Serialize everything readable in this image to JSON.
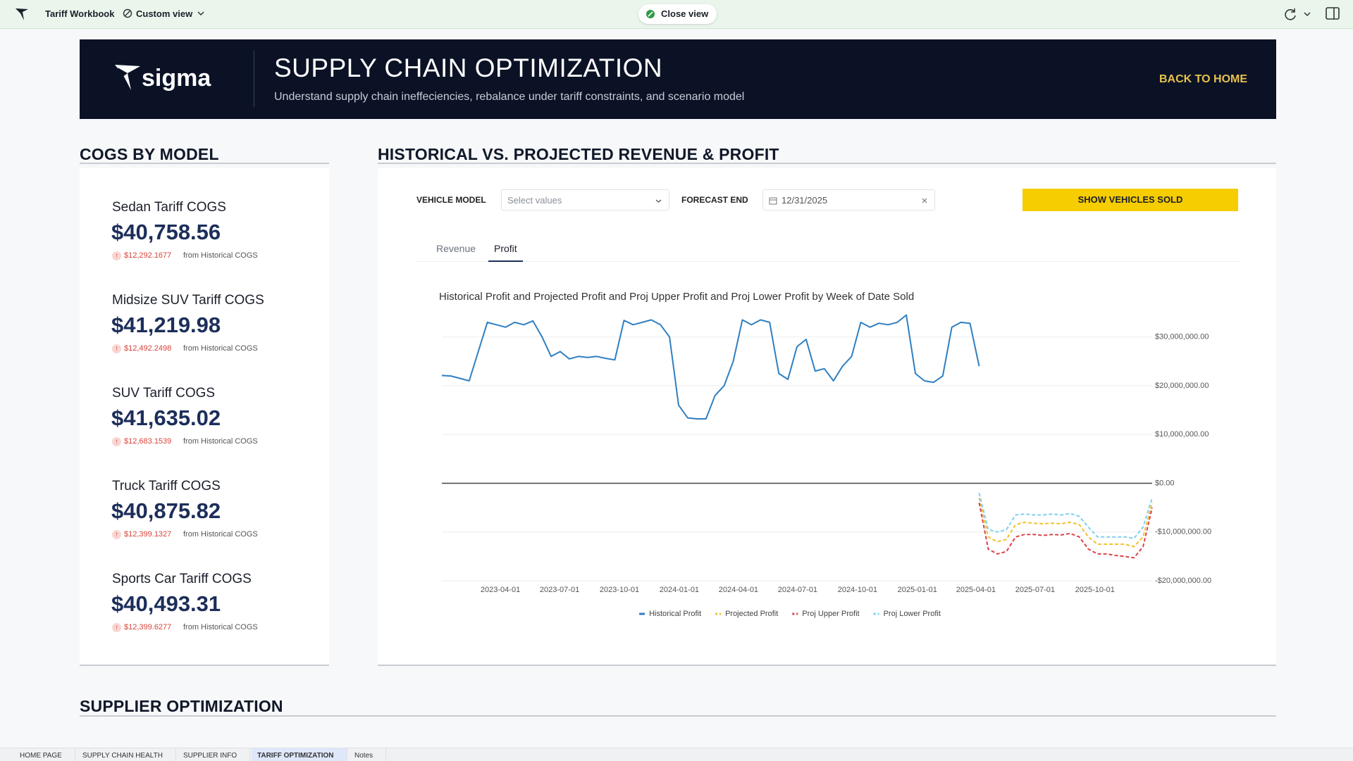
{
  "topbar": {
    "workbook": "Tariff Workbook",
    "view": "Custom view",
    "close": "Close view"
  },
  "header": {
    "logo": "sigma",
    "title": "SUPPLY CHAIN OPTIMIZATION",
    "subtitle": "Understand supply chain ineffeciencies, rebalance under tariff constraints, and scenario model",
    "link": "BACK TO HOME"
  },
  "cogs": {
    "title": "COGS BY MODEL",
    "items": [
      {
        "label": "Sedan Tariff COGS",
        "value": "$40,758.56",
        "change": "$12,292.1677",
        "note": "from Historical COGS"
      },
      {
        "label": "Midsize SUV Tariff COGS",
        "value": "$41,219.98",
        "change": "$12,492.2498",
        "note": "from Historical COGS"
      },
      {
        "label": "SUV Tariff COGS",
        "value": "$41,635.02",
        "change": "$12,683.1539",
        "note": "from Historical COGS"
      },
      {
        "label": "Truck Tariff COGS",
        "value": "$40,875.82",
        "change": "$12,399.1327",
        "note": "from Historical COGS"
      },
      {
        "label": "Sports Car Tariff COGS",
        "value": "$40,493.31",
        "change": "$12,399.6277",
        "note": "from Historical COGS"
      }
    ]
  },
  "forecast": {
    "title": "HISTORICAL VS. PROJECTED REVENUE & PROFIT",
    "model_label": "VEHICLE MODEL",
    "model_placeholder": "Select values",
    "end_label": "FORECAST END",
    "end_value": "12/31/2025",
    "button": "SHOW VEHICLES SOLD",
    "tabs": [
      "Revenue",
      "Profit"
    ],
    "active_tab": 1
  },
  "chart_data": {
    "type": "line",
    "title": "Historical Profit and Projected Profit and Proj Upper Profit and Proj Lower Profit by Week of Date Sold",
    "xlim": [
      "2023-01-01",
      "2025-12-28"
    ],
    "xticks": [
      "2023-04-01",
      "2023-07-01",
      "2023-10-01",
      "2024-01-01",
      "2024-04-01",
      "2024-07-01",
      "2024-10-01",
      "2025-01-01",
      "2025-04-01",
      "2025-07-01",
      "2025-10-01"
    ],
    "ylim": [
      -20000000,
      35000000
    ],
    "yticks": [
      {
        "value": 30000000,
        "label": "$30,000,000.00"
      },
      {
        "value": 20000000,
        "label": "$20,000,000.00"
      },
      {
        "value": 10000000,
        "label": "$10,000,000.00"
      },
      {
        "value": 0,
        "label": "$0.00"
      },
      {
        "value": -10000000,
        "label": "-$10,000,000.00"
      },
      {
        "value": -20000000,
        "label": "-$20,000,000.00"
      }
    ],
    "grid": true,
    "legend": "bottom",
    "series": [
      {
        "name": "Historical Profit",
        "color": "#2f7fc1",
        "dashed": false,
        "x": [
          "2023-01-01",
          "2023-01-15",
          "2023-01-29",
          "2023-02-12",
          "2023-02-26",
          "2023-03-12",
          "2023-03-26",
          "2023-04-09",
          "2023-04-23",
          "2023-05-07",
          "2023-05-21",
          "2023-06-04",
          "2023-06-18",
          "2023-07-02",
          "2023-07-16",
          "2023-07-30",
          "2023-08-13",
          "2023-08-27",
          "2023-09-10",
          "2023-09-24",
          "2023-10-08",
          "2023-10-22",
          "2023-11-05",
          "2023-11-19",
          "2023-12-03",
          "2023-12-17",
          "2023-12-31",
          "2024-01-14",
          "2024-01-28",
          "2024-02-11",
          "2024-02-25",
          "2024-03-10",
          "2024-03-24",
          "2024-04-07",
          "2024-04-21",
          "2024-05-05",
          "2024-05-19",
          "2024-06-02",
          "2024-06-16",
          "2024-06-30",
          "2024-07-14",
          "2024-07-28",
          "2024-08-11",
          "2024-08-25",
          "2024-09-08",
          "2024-09-22",
          "2024-10-06",
          "2024-10-20",
          "2024-11-03",
          "2024-11-17",
          "2024-12-01",
          "2024-12-15",
          "2024-12-29",
          "2025-01-12",
          "2025-01-26",
          "2025-02-09",
          "2025-02-23",
          "2025-03-09",
          "2025-03-23",
          "2025-04-06"
        ],
        "values": [
          22100000,
          22000000,
          21500000,
          21000000,
          27000000,
          33000000,
          32500000,
          32000000,
          33000000,
          32500000,
          33300000,
          30000000,
          26000000,
          27000000,
          25500000,
          26000000,
          25800000,
          26000000,
          25600000,
          25300000,
          33400000,
          32500000,
          33000000,
          33500000,
          32500000,
          30000000,
          16000000,
          13400000,
          13200000,
          13200000,
          18000000,
          20000000,
          25000000,
          33500000,
          32500000,
          33500000,
          33000000,
          22500000,
          21300000,
          28000000,
          29500000,
          23000000,
          23500000,
          21000000,
          24000000,
          26000000,
          33000000,
          32000000,
          32800000,
          32500000,
          33000000,
          34500000,
          22500000,
          21000000,
          20700000,
          22000000,
          32000000,
          33000000,
          32800000,
          24000000
        ]
      },
      {
        "name": "Projected Profit",
        "color": "#f2c12e",
        "dashed": true,
        "x": [
          "2025-04-06",
          "2025-04-20",
          "2025-05-04",
          "2025-05-18",
          "2025-06-01",
          "2025-06-15",
          "2025-06-29",
          "2025-07-13",
          "2025-07-27",
          "2025-08-10",
          "2025-08-24",
          "2025-09-07",
          "2025-09-21",
          "2025-10-05",
          "2025-10-19",
          "2025-11-02",
          "2025-11-16",
          "2025-11-30",
          "2025-12-14",
          "2025-12-28"
        ],
        "values": [
          -3000000,
          -11000000,
          -12000000,
          -11500000,
          -8500000,
          -8000000,
          -8200000,
          -8300000,
          -8200000,
          -8300000,
          -8000000,
          -8500000,
          -11000000,
          -12500000,
          -12500000,
          -12500000,
          -12500000,
          -13000000,
          -11000000,
          -4000000
        ]
      },
      {
        "name": "Proj Upper Profit",
        "color": "#d9434b",
        "dashed": true,
        "x": [
          "2025-04-06",
          "2025-04-20",
          "2025-05-04",
          "2025-05-18",
          "2025-06-01",
          "2025-06-15",
          "2025-06-29",
          "2025-07-13",
          "2025-07-27",
          "2025-08-10",
          "2025-08-24",
          "2025-09-07",
          "2025-09-21",
          "2025-10-05",
          "2025-10-19",
          "2025-11-02",
          "2025-11-16",
          "2025-11-30",
          "2025-12-14",
          "2025-12-28"
        ],
        "values": [
          -4000000,
          -13500000,
          -14500000,
          -14000000,
          -11000000,
          -10500000,
          -10500000,
          -10700000,
          -10500000,
          -10600000,
          -10300000,
          -11000000,
          -13500000,
          -14500000,
          -14500000,
          -14800000,
          -15000000,
          -15300000,
          -13000000,
          -5000000
        ]
      },
      {
        "name": "Proj Lower Profit",
        "color": "#7fd0f0",
        "dashed": true,
        "x": [
          "2025-04-06",
          "2025-04-20",
          "2025-05-04",
          "2025-05-18",
          "2025-06-01",
          "2025-06-15",
          "2025-06-29",
          "2025-07-13",
          "2025-07-27",
          "2025-08-10",
          "2025-08-24",
          "2025-09-07",
          "2025-09-21",
          "2025-10-05",
          "2025-10-19",
          "2025-11-02",
          "2025-11-16",
          "2025-11-30",
          "2025-12-14",
          "2025-12-28"
        ],
        "values": [
          -2000000,
          -9500000,
          -10000000,
          -9500000,
          -6500000,
          -6300000,
          -6500000,
          -6500000,
          -6300000,
          -6500000,
          -6200000,
          -6800000,
          -9000000,
          -11000000,
          -11000000,
          -11000000,
          -11000000,
          -11300000,
          -9000000,
          -3000000
        ]
      }
    ]
  },
  "supplier": {
    "title": "SUPPLIER OPTIMIZATION"
  },
  "page_tabs": {
    "items": [
      "HOME PAGE",
      "SUPPLY CHAIN HEALTH",
      "SUPPLIER INFO",
      "TARIFF OPTIMIZATION",
      "Notes"
    ],
    "active": 3
  }
}
